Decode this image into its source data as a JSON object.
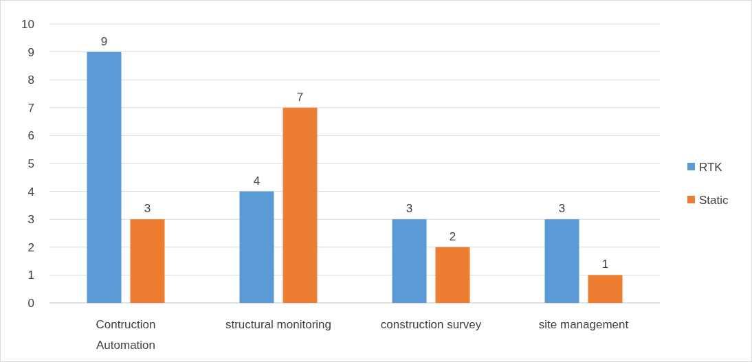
{
  "chart_data": {
    "type": "bar",
    "categories": [
      "Contruction Automation",
      "structural monitoring",
      "construction survey",
      "site management"
    ],
    "series": [
      {
        "name": "RTK",
        "color": "#5b9bd5",
        "values": [
          9,
          4,
          3,
          3
        ]
      },
      {
        "name": "Static",
        "color": "#ed7d31",
        "values": [
          3,
          7,
          2,
          1
        ]
      }
    ],
    "ylim": [
      0,
      10
    ],
    "yticks": [
      0,
      1,
      2,
      3,
      4,
      5,
      6,
      7,
      8,
      9,
      10
    ],
    "grid": "y",
    "legend": "right",
    "data_labels": true
  }
}
